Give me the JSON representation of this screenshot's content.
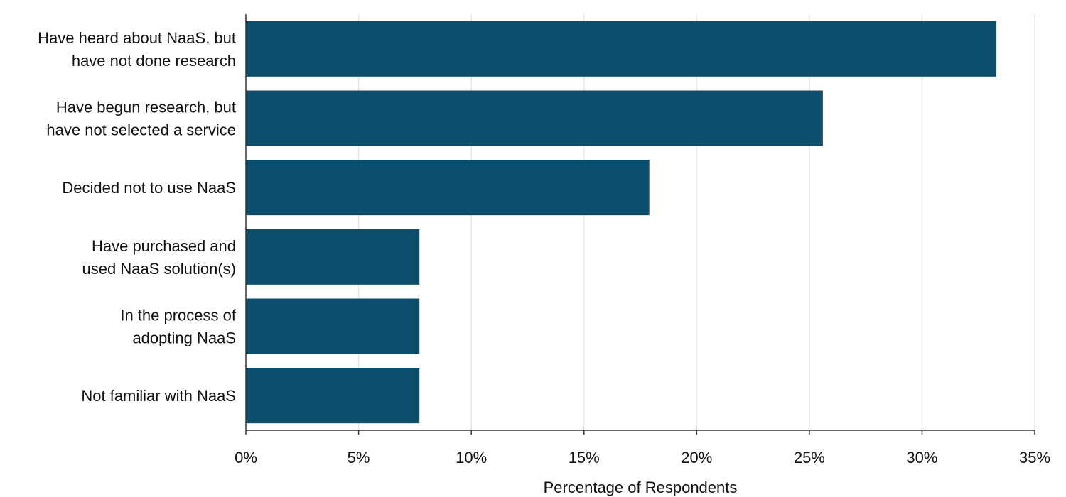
{
  "chart_data": {
    "type": "bar",
    "orientation": "horizontal",
    "categories": [
      [
        "Have heard about NaaS, but",
        "have not done research"
      ],
      [
        "Have begun research, but",
        "have not selected a service"
      ],
      [
        "Decided not to use NaaS"
      ],
      [
        "Have purchased and",
        "used NaaS solution(s)"
      ],
      [
        "In the process of",
        "adopting NaaS"
      ],
      [
        "Not familiar with NaaS"
      ]
    ],
    "values": [
      33.3,
      25.6,
      17.9,
      7.7,
      7.7,
      7.7
    ],
    "xlabel": "Percentage of Respondents",
    "ylabel": "",
    "xlim": [
      0,
      35
    ],
    "ticks": [
      0,
      5,
      10,
      15,
      20,
      25,
      30,
      35
    ],
    "tick_labels": [
      "0%",
      "5%",
      "10%",
      "15%",
      "20%",
      "25%",
      "30%",
      "35%"
    ],
    "grid": "vertical",
    "bar_color": "#0b4f6c",
    "grid_color": "#e6e6e6",
    "axis_color": "#333333"
  }
}
